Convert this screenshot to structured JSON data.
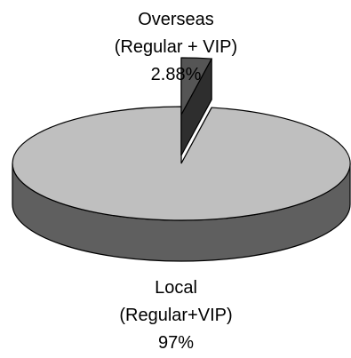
{
  "chart_data": {
    "type": "pie",
    "style": "3d-exploded",
    "slices": [
      {
        "label_lines": [
          "Overseas",
          "(Regular + VIP)"
        ],
        "value_label": "2.88%",
        "value": 2.88,
        "color": "#555555",
        "exploded": true
      },
      {
        "label_lines": [
          "Local",
          "(Regular+VIP)"
        ],
        "value_label": "97%",
        "value": 97.12,
        "color": "#bfbfbf",
        "exploded": false
      }
    ],
    "side_color": "#5f5f5f",
    "outline_color": "#000000"
  }
}
